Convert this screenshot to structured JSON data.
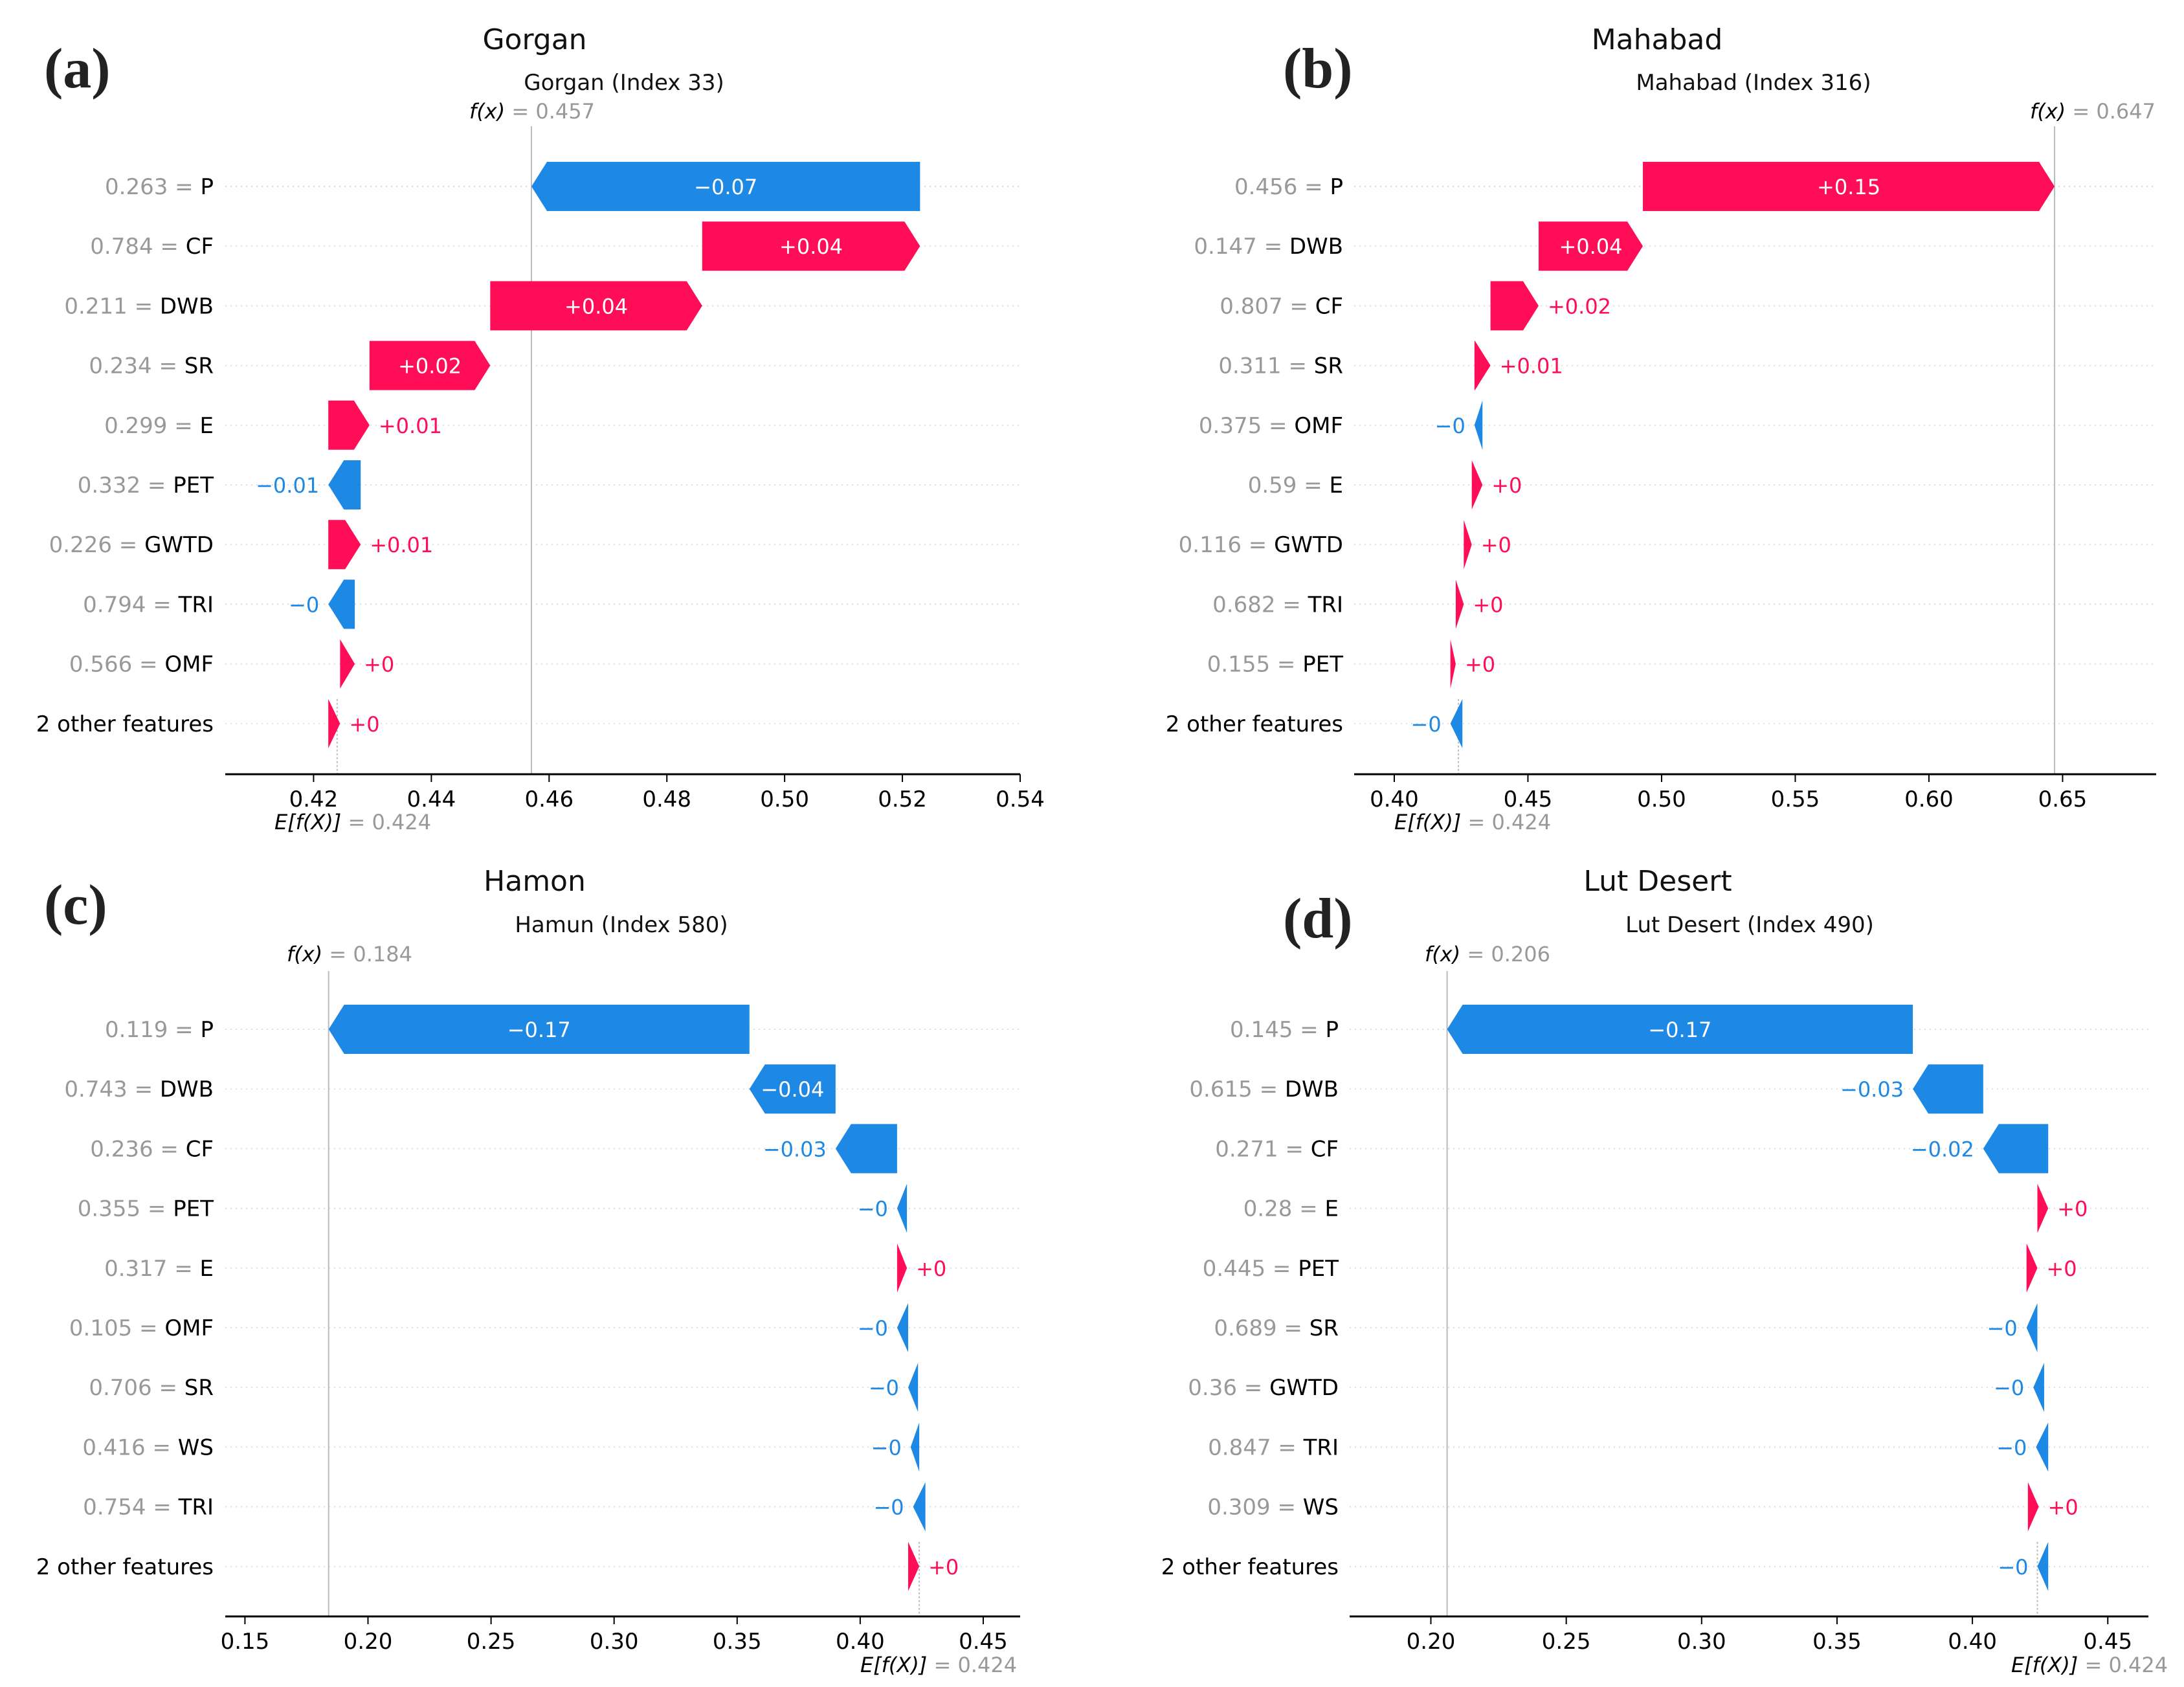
{
  "figure": {
    "colors": {
      "positive": "#ff0d57",
      "negative": "#1e88e5",
      "value_text": "#999999",
      "label_text": "#000000",
      "axis": "#000000",
      "grid": "#dddddd"
    }
  },
  "chart_data": [
    {
      "type": "waterfall",
      "panel_label": "(a)",
      "title": "Gorgan",
      "subtitle": "Gorgan (Index 33)",
      "base_value": 0.424,
      "base_value_label": "E[f(X)] = 0.424",
      "output_value": 0.457,
      "output_value_label": "f(x) = 0.457",
      "x_ticks": [
        "0.42",
        "0.44",
        "0.46",
        "0.48",
        "0.50",
        "0.52",
        "0.54"
      ],
      "xlim": [
        0.405,
        0.54
      ],
      "features": [
        {
          "value": "0.263",
          "name": "P",
          "start": 0.523,
          "end": 0.457,
          "label": "−0.07"
        },
        {
          "value": "0.784",
          "name": "CF",
          "start": 0.486,
          "end": 0.523,
          "label": "+0.04"
        },
        {
          "value": "0.211",
          "name": "DWB",
          "start": 0.45,
          "end": 0.486,
          "label": "+0.04"
        },
        {
          "value": "0.234",
          "name": "SR",
          "start": 0.4295,
          "end": 0.45,
          "label": "+0.02"
        },
        {
          "value": "0.299",
          "name": "E",
          "start": 0.4225,
          "end": 0.4295,
          "label": "+0.01"
        },
        {
          "value": "0.332",
          "name": "PET",
          "start": 0.428,
          "end": 0.4225,
          "label": "−0.01"
        },
        {
          "value": "0.226",
          "name": "GWTD",
          "start": 0.4225,
          "end": 0.428,
          "label": "+0.01"
        },
        {
          "value": "0.794",
          "name": "TRI",
          "start": 0.427,
          "end": 0.4225,
          "label": "−0"
        },
        {
          "value": "0.566",
          "name": "OMF",
          "start": 0.4245,
          "end": 0.427,
          "label": "+0"
        },
        {
          "value": "",
          "name": "2 other features",
          "start": 0.4225,
          "end": 0.4245,
          "label": "+0"
        }
      ]
    },
    {
      "type": "waterfall",
      "panel_label": "(b)",
      "title": "Mahabad",
      "subtitle": "Mahabad (Index 316)",
      "base_value": 0.424,
      "base_value_label": "E[f(X)] = 0.424",
      "output_value": 0.647,
      "output_value_label": "f(x) = 0.647",
      "x_ticks": [
        "0.40",
        "0.45",
        "0.50",
        "0.55",
        "0.60",
        "0.65"
      ],
      "xlim": [
        0.385,
        0.685
      ],
      "features": [
        {
          "value": "0.456",
          "name": "P",
          "start": 0.493,
          "end": 0.647,
          "label": "+0.15"
        },
        {
          "value": "0.147",
          "name": "DWB",
          "start": 0.454,
          "end": 0.493,
          "label": "+0.04"
        },
        {
          "value": "0.807",
          "name": "CF",
          "start": 0.436,
          "end": 0.454,
          "label": "+0.02"
        },
        {
          "value": "0.311",
          "name": "SR",
          "start": 0.43,
          "end": 0.436,
          "label": "+0.01"
        },
        {
          "value": "0.375",
          "name": "OMF",
          "start": 0.433,
          "end": 0.43,
          "label": "−0"
        },
        {
          "value": "0.59",
          "name": "E",
          "start": 0.429,
          "end": 0.433,
          "label": "+0"
        },
        {
          "value": "0.116",
          "name": "GWTD",
          "start": 0.426,
          "end": 0.429,
          "label": "+0"
        },
        {
          "value": "0.682",
          "name": "TRI",
          "start": 0.423,
          "end": 0.426,
          "label": "+0"
        },
        {
          "value": "0.155",
          "name": "PET",
          "start": 0.421,
          "end": 0.423,
          "label": "+0"
        },
        {
          "value": "",
          "name": "2 other features",
          "start": 0.4255,
          "end": 0.421,
          "label": "−0"
        }
      ]
    },
    {
      "type": "waterfall",
      "panel_label": "(c)",
      "title": "Hamon",
      "subtitle": "Hamun (Index 580)",
      "base_value": 0.424,
      "base_value_label": "E[f(X)] = 0.424",
      "output_value": 0.184,
      "output_value_label": "f(x) = 0.184",
      "x_ticks": [
        "0.15",
        "0.20",
        "0.25",
        "0.30",
        "0.35",
        "0.40",
        "0.45"
      ],
      "xlim": [
        0.142,
        0.465
      ],
      "features": [
        {
          "value": "0.119",
          "name": "P",
          "start": 0.355,
          "end": 0.184,
          "label": "−0.17"
        },
        {
          "value": "0.743",
          "name": "DWB",
          "start": 0.39,
          "end": 0.355,
          "label": "−0.04"
        },
        {
          "value": "0.236",
          "name": "CF",
          "start": 0.415,
          "end": 0.39,
          "label": "−0.03"
        },
        {
          "value": "0.355",
          "name": "PET",
          "start": 0.419,
          "end": 0.415,
          "label": "−0"
        },
        {
          "value": "0.317",
          "name": "E",
          "start": 0.415,
          "end": 0.419,
          "label": "+0"
        },
        {
          "value": "0.105",
          "name": "OMF",
          "start": 0.4195,
          "end": 0.415,
          "label": "−0"
        },
        {
          "value": "0.706",
          "name": "SR",
          "start": 0.4235,
          "end": 0.4195,
          "label": "−0"
        },
        {
          "value": "0.416",
          "name": "WS",
          "start": 0.424,
          "end": 0.4205,
          "label": "−0"
        },
        {
          "value": "0.754",
          "name": "TRI",
          "start": 0.4265,
          "end": 0.4215,
          "label": "−0"
        },
        {
          "value": "",
          "name": "2 other features",
          "start": 0.4195,
          "end": 0.424,
          "label": "+0"
        }
      ]
    },
    {
      "type": "waterfall",
      "panel_label": "(d)",
      "title": "Lut Desert",
      "subtitle": "Lut Desert (Index 490)",
      "base_value": 0.424,
      "base_value_label": "E[f(X)] = 0.424",
      "output_value": 0.206,
      "output_value_label": "f(x) = 0.206",
      "x_ticks": [
        "0.20",
        "0.25",
        "0.30",
        "0.35",
        "0.40",
        "0.45"
      ],
      "xlim": [
        0.17,
        0.465
      ],
      "features": [
        {
          "value": "0.145",
          "name": "P",
          "start": 0.378,
          "end": 0.206,
          "label": "−0.17"
        },
        {
          "value": "0.615",
          "name": "DWB",
          "start": 0.404,
          "end": 0.378,
          "label": "−0.03"
        },
        {
          "value": "0.271",
          "name": "CF",
          "start": 0.428,
          "end": 0.404,
          "label": "−0.02"
        },
        {
          "value": "0.28",
          "name": "E",
          "start": 0.424,
          "end": 0.428,
          "label": "+0"
        },
        {
          "value": "0.445",
          "name": "PET",
          "start": 0.42,
          "end": 0.424,
          "label": "+0"
        },
        {
          "value": "0.689",
          "name": "SR",
          "start": 0.424,
          "end": 0.42,
          "label": "−0"
        },
        {
          "value": "0.36",
          "name": "GWTD",
          "start": 0.4265,
          "end": 0.4225,
          "label": "−0"
        },
        {
          "value": "0.847",
          "name": "TRI",
          "start": 0.428,
          "end": 0.4235,
          "label": "−0"
        },
        {
          "value": "0.309",
          "name": "WS",
          "start": 0.4205,
          "end": 0.4245,
          "label": "+0"
        },
        {
          "value": "",
          "name": "2 other features",
          "start": 0.428,
          "end": 0.424,
          "label": "−0"
        }
      ]
    }
  ]
}
